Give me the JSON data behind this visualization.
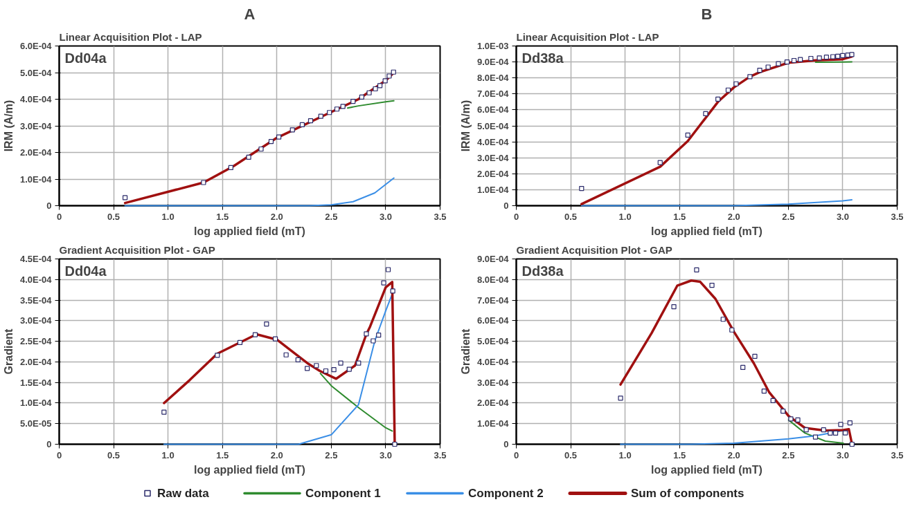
{
  "chart_data": [
    {
      "type": "scatter",
      "title": "A",
      "subtitle": "Linear Acquisition Plot - LAP",
      "annotations": [
        "Dd04a"
      ],
      "xlabel": "log applied field (mT)",
      "ylabel": "IRM (A/m)",
      "xlim": [
        0,
        3.5
      ],
      "xticks": [
        0,
        0.5,
        {
          "value": 1,
          "label": "1.0"
        },
        1.5,
        {
          "value": 2,
          "label": "2.0"
        },
        2.5,
        {
          "value": 3,
          "label": "3.0"
        },
        3.5
      ],
      "ylim": [
        0,
        0.0006
      ],
      "yticks": [
        0,
        {
          "value": 0.0001,
          "label": "1.0E-04"
        },
        {
          "value": 0.0002,
          "label": "2.0E-04"
        },
        {
          "value": 0.0003,
          "label": "3.0E-04"
        },
        {
          "value": 0.0004,
          "label": "4.0E-04"
        },
        {
          "value": 0.0005,
          "label": "5.0E-04"
        },
        {
          "value": 0.0006,
          "label": "6.0E-04"
        }
      ],
      "grid": true,
      "line_style": "solid",
      "series": [
        {
          "marker": "square",
          "color": "#2a2a6a",
          "x": [
            0.605,
            1.326,
            1.577,
            1.741,
            1.855,
            1.947,
            2.018,
            2.143,
            2.233,
            2.31,
            2.404,
            2.483,
            2.552,
            2.607,
            2.7,
            2.78,
            2.848,
            2.905,
            2.947,
            2.995,
            3.032,
            3.072
          ],
          "values": [
            3e-05,
            8.7e-05,
            0.000143,
            0.000182,
            0.000213,
            0.000241,
            0.000258,
            0.000285,
            0.000304,
            0.000319,
            0.000336,
            0.00035,
            0.000363,
            0.000373,
            0.000392,
            0.000408,
            0.000424,
            0.000439,
            0.000451,
            0.000469,
            0.000487,
            0.000502
          ]
        },
        {
          "type": "line",
          "color": "#2e8b2e",
          "x": [
            2.65,
            2.75,
            3.0,
            3.075
          ],
          "values": [
            0.000367,
            0.000375,
            0.00039,
            0.000394
          ]
        },
        {
          "type": "line",
          "color": "#3a8ee6",
          "x": [
            0.605,
            2.3,
            2.5,
            2.7,
            2.9,
            3.075
          ],
          "values": [
            0,
            0,
            3e-06,
            1.5e-05,
            4.8e-05,
            0.000104
          ]
        },
        {
          "type": "line",
          "color": "#a01010",
          "x": [
            0.605,
            1.326,
            1.6,
            2.0,
            2.5,
            2.75,
            3.0,
            3.075
          ],
          "values": [
            1e-05,
            8.7e-05,
            0.000148,
            0.000255,
            0.000352,
            0.0004,
            0.00047,
            0.0005
          ]
        }
      ]
    },
    {
      "type": "scatter",
      "title": "B",
      "subtitle": "Linear Acquisition Plot - LAP",
      "annotations": [
        "Dd38a"
      ],
      "xlabel": "log applied field (mT)",
      "ylabel": "IRM (A/m)",
      "xlim": [
        0,
        3.5
      ],
      "xticks": [
        0,
        0.5,
        {
          "value": 1,
          "label": "1.0"
        },
        1.5,
        {
          "value": 2,
          "label": "2.0"
        },
        2.5,
        {
          "value": 3,
          "label": "3.0"
        },
        3.5
      ],
      "ylim": [
        0,
        0.001
      ],
      "yticks": [
        0,
        {
          "value": 0.0001,
          "label": "1.0E-04"
        },
        {
          "value": 0.0002,
          "label": "2.0E-04"
        },
        {
          "value": 0.0003,
          "label": "3.0E-04"
        },
        {
          "value": 0.0004,
          "label": "4.0E-04"
        },
        {
          "value": 0.0005,
          "label": "5.0E-04"
        },
        {
          "value": 0.0006,
          "label": "6.0E-04"
        },
        {
          "value": 0.0007,
          "label": "7.0E-04"
        },
        {
          "value": 0.0008,
          "label": "8.0E-04"
        },
        {
          "value": 0.0009,
          "label": "9.0E-04"
        },
        {
          "value": 0.001,
          "label": "1.0E-03"
        }
      ],
      "grid": true,
      "line_style": "solid",
      "series": [
        {
          "marker": "square",
          "color": "#2a2a6a",
          "x": [
            0.6,
            1.322,
            1.576,
            1.74,
            1.853,
            1.947,
            2.02,
            2.147,
            2.237,
            2.314,
            2.408,
            2.488,
            2.552,
            2.61,
            2.707,
            2.785,
            2.85,
            2.909,
            2.954,
            2.999,
            3.046,
            3.083
          ],
          "values": [
            0.000108,
            0.00027,
            0.000442,
            0.000576,
            0.000667,
            0.000724,
            0.000763,
            0.000808,
            0.000848,
            0.000868,
            0.000889,
            0.0009,
            0.000909,
            0.000915,
            0.000922,
            0.000925,
            0.00093,
            0.000933,
            0.000936,
            0.00094,
            0.000943,
            0.000946
          ]
        },
        {
          "type": "line",
          "color": "#2e8b2e",
          "x": [
            2.75,
            3.0,
            3.083
          ],
          "values": [
            0.000898,
            0.000899,
            0.0009
          ]
        },
        {
          "type": "line",
          "color": "#3a8ee6",
          "x": [
            0.6,
            2.0,
            2.5,
            3.0,
            3.083
          ],
          "values": [
            0,
            0,
            1e-05,
            3e-05,
            3.7e-05
          ]
        },
        {
          "type": "line",
          "color": "#a01010",
          "x": [
            0.6,
            1.322,
            1.576,
            1.858,
            2.0,
            2.147,
            2.237,
            2.5,
            2.75,
            3.0,
            3.083
          ],
          "values": [
            1e-05,
            0.000244,
            0.000405,
            0.000654,
            0.000741,
            0.000808,
            0.000836,
            0.000895,
            0.00091,
            0.000917,
            0.000934
          ]
        }
      ]
    },
    {
      "type": "scatter",
      "subtitle": "Gradient Acquisition Plot - GAP",
      "annotations": [
        "Dd04a"
      ],
      "xlabel": "log applied field (mT)",
      "ylabel": "Gradient",
      "xlim": [
        0,
        3.5
      ],
      "xticks": [
        0,
        0.5,
        {
          "value": 1,
          "label": "1.0"
        },
        1.5,
        {
          "value": 2,
          "label": "2.0"
        },
        2.5,
        {
          "value": 3,
          "label": "3.0"
        },
        3.5
      ],
      "ylim": [
        0,
        0.00045
      ],
      "yticks": [
        0,
        {
          "value": 5e-05,
          "label": "5.0E-05"
        },
        {
          "value": 0.0001,
          "label": "1.0E-04"
        },
        {
          "value": 0.00015,
          "label": "1.5E-04"
        },
        {
          "value": 0.0002,
          "label": "2.0E-04"
        },
        {
          "value": 0.00025,
          "label": "2.5E-04"
        },
        {
          "value": 0.0003,
          "label": "3.0E-04"
        },
        {
          "value": 0.00035,
          "label": "3.5E-04"
        },
        {
          "value": 0.0004,
          "label": "4.0E-04"
        },
        {
          "value": 0.00045,
          "label": "4.5E-04"
        }
      ],
      "grid": true,
      "line_style": "solid",
      "series": [
        {
          "marker": "square",
          "color": "#2a2a6a",
          "x": [
            0.963,
            1.453,
            1.661,
            1.801,
            1.905,
            1.986,
            2.085,
            2.194,
            2.279,
            2.363,
            2.45,
            2.524,
            2.587,
            2.665,
            2.751,
            2.822,
            2.885,
            2.935,
            2.982,
            3.023,
            3.065,
            3.083
          ],
          "values": [
            7.8e-05,
            0.000216,
            0.000247,
            0.000266,
            0.000292,
            0.000256,
            0.000217,
            0.000205,
            0.000184,
            0.000191,
            0.000178,
            0.000181,
            0.000197,
            0.000182,
            0.000197,
            0.000268,
            0.000251,
            0.000265,
            0.000392,
            0.000424,
            0.000372,
            0
          ]
        },
        {
          "type": "line",
          "color": "#2e8b2e",
          "x": [
            2.4,
            2.5,
            2.75,
            3.0,
            3.06
          ],
          "values": [
            0.000172,
            0.000142,
            8.9e-05,
            4e-05,
            3.2e-05
          ]
        },
        {
          "type": "line",
          "color": "#3a8ee6",
          "x": [
            0.963,
            2.2,
            2.5,
            2.75,
            2.9,
            3.0,
            3.06
          ],
          "values": [
            0,
            0,
            2.3e-05,
            9.6e-05,
            0.000251,
            0.000324,
            0.000365
          ]
        },
        {
          "type": "line",
          "color": "#a01010",
          "x": [
            0.963,
            1.2,
            1.453,
            1.813,
            2.0,
            2.28,
            2.395,
            2.545,
            2.718,
            2.822,
            2.857,
            3.0,
            3.06,
            3.083
          ],
          "values": [
            0.0001,
            0.000156,
            0.00022,
            0.000267,
            0.000254,
            0.000197,
            0.000178,
            0.000159,
            0.000191,
            0.000267,
            0.000286,
            0.000381,
            0.000394,
            0
          ]
        }
      ]
    },
    {
      "type": "scatter",
      "subtitle": "Gradient Acquisition Plot - GAP",
      "annotations": [
        "Dd38a"
      ],
      "xlabel": "log applied field (mT)",
      "ylabel": "Gradient",
      "xlim": [
        0,
        3.5
      ],
      "xticks": [
        0,
        0.5,
        {
          "value": 1,
          "label": "1.0"
        },
        1.5,
        {
          "value": 2,
          "label": "2.0"
        },
        2.5,
        {
          "value": 3,
          "label": "3.0"
        },
        3.5
      ],
      "ylim": [
        0,
        0.0009
      ],
      "yticks": [
        0,
        {
          "value": 0.0001,
          "label": "1.0E-04"
        },
        {
          "value": 0.0002,
          "label": "2.0E-04"
        },
        {
          "value": 0.0003,
          "label": "3.0E-04"
        },
        {
          "value": 0.0004,
          "label": "4.0E-04"
        },
        {
          "value": 0.0005,
          "label": "5.0E-04"
        },
        {
          "value": 0.0006,
          "label": "6.0E-04"
        },
        {
          "value": 0.0007,
          "label": "7.0E-04"
        },
        {
          "value": 0.0008,
          "label": "8.0E-04"
        },
        {
          "value": 0.0009,
          "label": "9.0E-04"
        }
      ],
      "grid": true,
      "line_style": "solid",
      "legend": "bottom",
      "series": [
        {
          "marker": "square",
          "name": "Raw data",
          "color": "#2a2a6a",
          "x": [
            0.958,
            1.448,
            1.657,
            1.798,
            1.901,
            1.981,
            2.082,
            2.192,
            2.277,
            2.359,
            2.451,
            2.523,
            2.587,
            2.664,
            2.749,
            2.824,
            2.885,
            2.934,
            2.981,
            3.023,
            3.066,
            3.085
          ],
          "values": [
            0.000224,
            0.000668,
            0.000847,
            0.000772,
            0.000607,
            0.000555,
            0.000373,
            0.000427,
            0.000258,
            0.000212,
            0.000161,
            0.000123,
            0.000118,
            7e-05,
            3.5e-05,
            7e-05,
            5.4e-05,
            5.4e-05,
            9.6e-05,
            5.5e-05,
            0.000104,
            0
          ]
        },
        {
          "type": "line",
          "name": "Component 1",
          "color": "#2e8b2e",
          "x": [
            2.502,
            2.653,
            2.84,
            3.005
          ],
          "values": [
            0.000118,
            5.4e-05,
            1.5e-05,
            5e-06
          ]
        },
        {
          "type": "line",
          "name": "Component 2",
          "color": "#3a8ee6",
          "x": [
            0.958,
            1.6,
            2.0,
            2.5,
            2.75,
            3.005,
            3.056
          ],
          "values": [
            0,
            0,
            5e-06,
            2.6e-05,
            4.1e-05,
            6.6e-05,
            6.9e-05
          ]
        },
        {
          "type": "line",
          "name": "Sum of components",
          "color": "#a01010",
          "x": [
            0.958,
            1.244,
            1.479,
            1.608,
            1.69,
            1.83,
            2.0,
            2.183,
            2.324,
            2.502,
            2.653,
            2.84,
            3.005,
            3.056,
            3.085
          ],
          "values": [
            0.00029,
            0.00054,
            0.00077,
            0.000795,
            0.000789,
            0.000706,
            0.000546,
            0.000393,
            0.000252,
            0.000137,
            7.9e-05,
            6.6e-05,
            6.9e-05,
            7.3e-05,
            0
          ]
        }
      ]
    }
  ]
}
